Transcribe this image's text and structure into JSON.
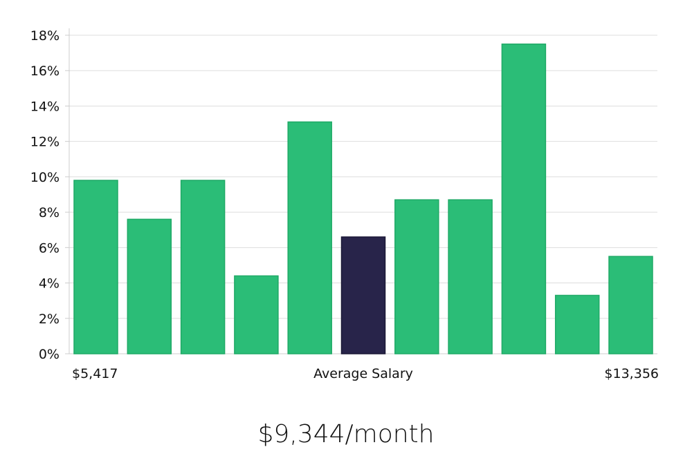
{
  "chart_data": {
    "type": "bar",
    "categories": [
      "",
      "",
      "",
      "",
      "",
      "",
      "",
      "",
      "",
      "",
      ""
    ],
    "values": [
      9.8,
      7.6,
      9.8,
      4.4,
      13.1,
      6.6,
      8.7,
      8.7,
      17.5,
      3.3,
      5.5
    ],
    "highlight_index": 5,
    "ylim": [
      0,
      18
    ],
    "ytick_step": 2,
    "ytick_suffix": "%",
    "grid": true,
    "xaxis_labels": {
      "left": "$5,417",
      "center": "Average Salary",
      "right": "$13,356"
    },
    "colors": {
      "bar": "#2bbd77",
      "bar_stroke": "#1faa66",
      "highlight": "#28244a",
      "highlight_stroke": "#1b1836",
      "grid": "#dddddd",
      "axis": "#cccccc"
    }
  },
  "summary": {
    "average_salary_text": "$9,344/month"
  }
}
